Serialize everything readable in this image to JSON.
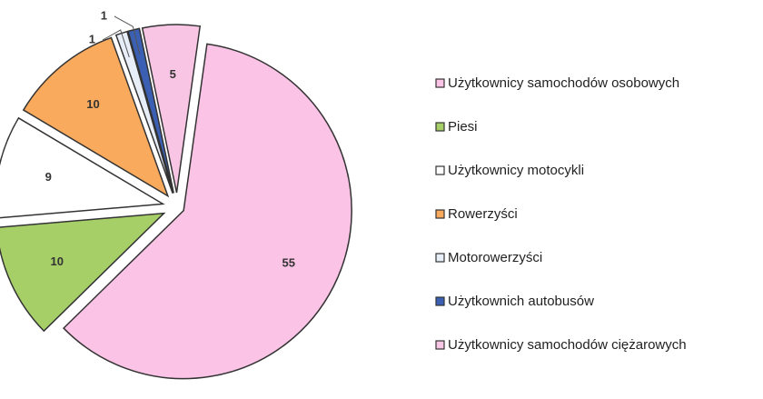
{
  "chart_data": {
    "type": "pie",
    "categories": [
      "Użytkownicy samochodów osobowych",
      "Piesi",
      "Użytkownicy motocykli",
      "Rowerzyści",
      "Motorowerzyści",
      "Użytkownich autobusów",
      "Użytkownicy samochodów ciężarowych"
    ],
    "values": [
      55,
      10,
      9,
      10,
      1,
      1,
      5
    ],
    "colors": [
      "#fbc3e6",
      "#a6cf68",
      "#ffffff",
      "#f9aa5c",
      "#e8eef8",
      "#3b5fb2",
      "#f8c6e4"
    ]
  }
}
